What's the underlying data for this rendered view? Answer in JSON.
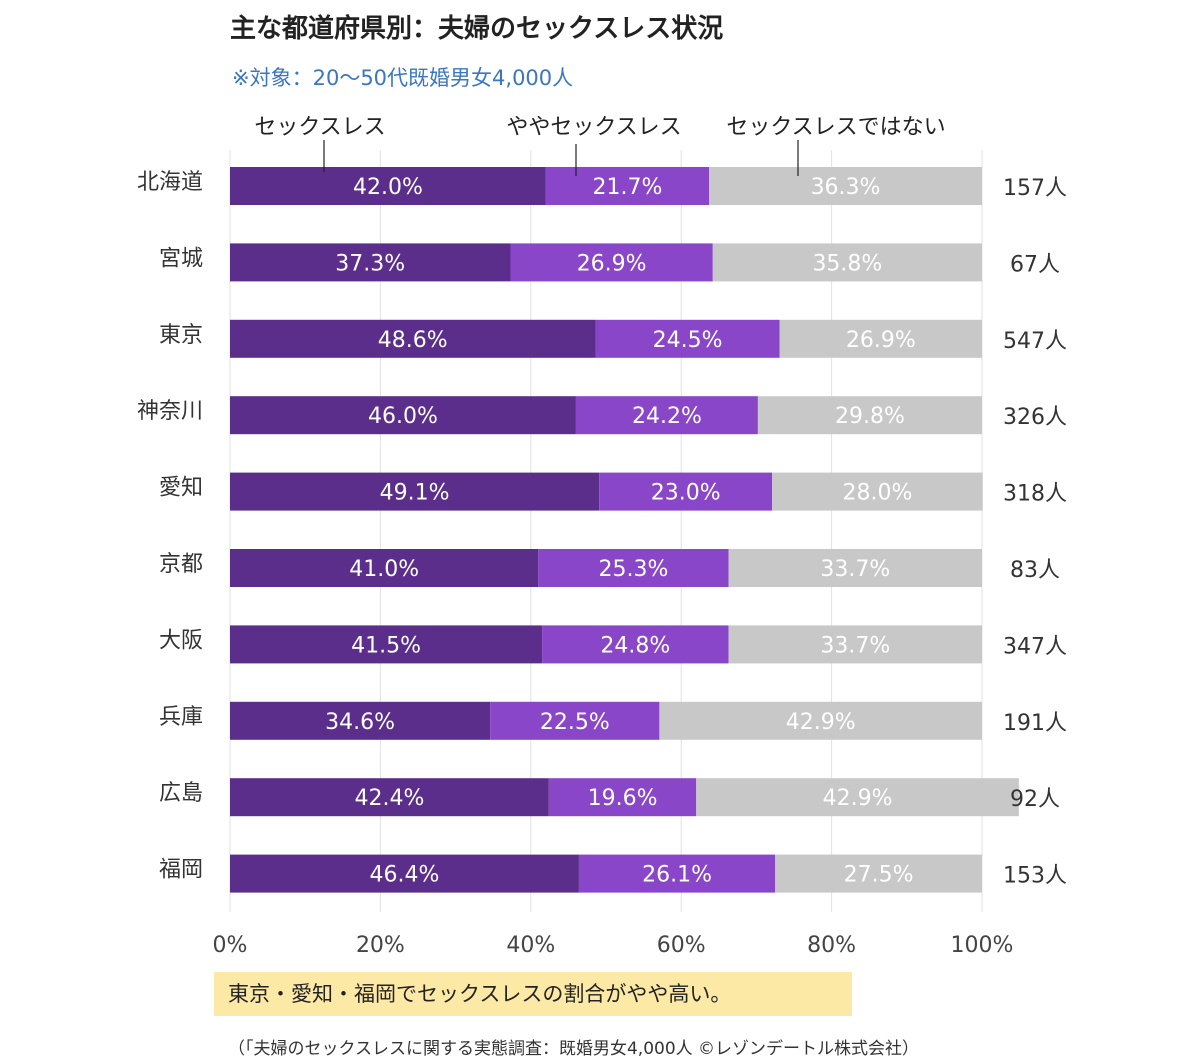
{
  "title": "主な都道府県別：夫婦のセックスレス状況",
  "subtitle": "※対象：20～50代既婚男女4,000人",
  "note": "東京・愛知・福岡でセックスレスの割合がやや高い。",
  "source": "（「夫婦のセックスレスに関する実態調査：既婚男女4,000人 ©レゾンデートル株式会社）",
  "chart_data": {
    "type": "bar",
    "orientation": "horizontal",
    "stacked": true,
    "categories": [
      "北海道",
      "宮城",
      "東京",
      "神奈川",
      "愛知",
      "京都",
      "大阪",
      "兵庫",
      "広島",
      "福岡"
    ],
    "series": [
      {
        "name": "セックスレス",
        "color": "#5c2e8c",
        "values": [
          42.0,
          37.3,
          48.6,
          46.0,
          49.1,
          41.0,
          41.5,
          34.6,
          42.4,
          46.4
        ]
      },
      {
        "name": "ややセックスレス",
        "color": "#8a46c8",
        "values": [
          21.7,
          26.9,
          24.5,
          24.2,
          23.0,
          25.3,
          24.8,
          22.5,
          19.6,
          26.1
        ]
      },
      {
        "name": "セックスレスではない",
        "color": "#c8c8c8",
        "values": [
          36.3,
          35.8,
          26.9,
          29.8,
          28.0,
          33.7,
          33.7,
          42.9,
          42.9,
          27.5
        ]
      }
    ],
    "value_labels": [
      [
        "42.0%",
        "21.7%",
        "36.3%"
      ],
      [
        "37.3%",
        "26.9%",
        "35.8%"
      ],
      [
        "48.6%",
        "24.5%",
        "26.9%"
      ],
      [
        "46.0%",
        "24.2%",
        "29.8%"
      ],
      [
        "49.1%",
        "23.0%",
        "28.0%"
      ],
      [
        "41.0%",
        "25.3%",
        "33.7%"
      ],
      [
        "41.5%",
        "24.8%",
        "33.7%"
      ],
      [
        "34.6%",
        "22.5%",
        "42.9%"
      ],
      [
        "42.4%",
        "19.6%",
        "42.9%"
      ],
      [
        "46.4%",
        "26.1%",
        "27.5%"
      ]
    ],
    "counts": [
      "157人",
      "67人",
      "547人",
      "326人",
      "318人",
      "83人",
      "347人",
      "191人",
      "92人",
      "153人"
    ],
    "x_ticks": [
      "0%",
      "20%",
      "40%",
      "60%",
      "80%",
      "100%"
    ],
    "xlim": [
      0,
      100
    ],
    "grid": true,
    "legend": "top, callout lines"
  }
}
